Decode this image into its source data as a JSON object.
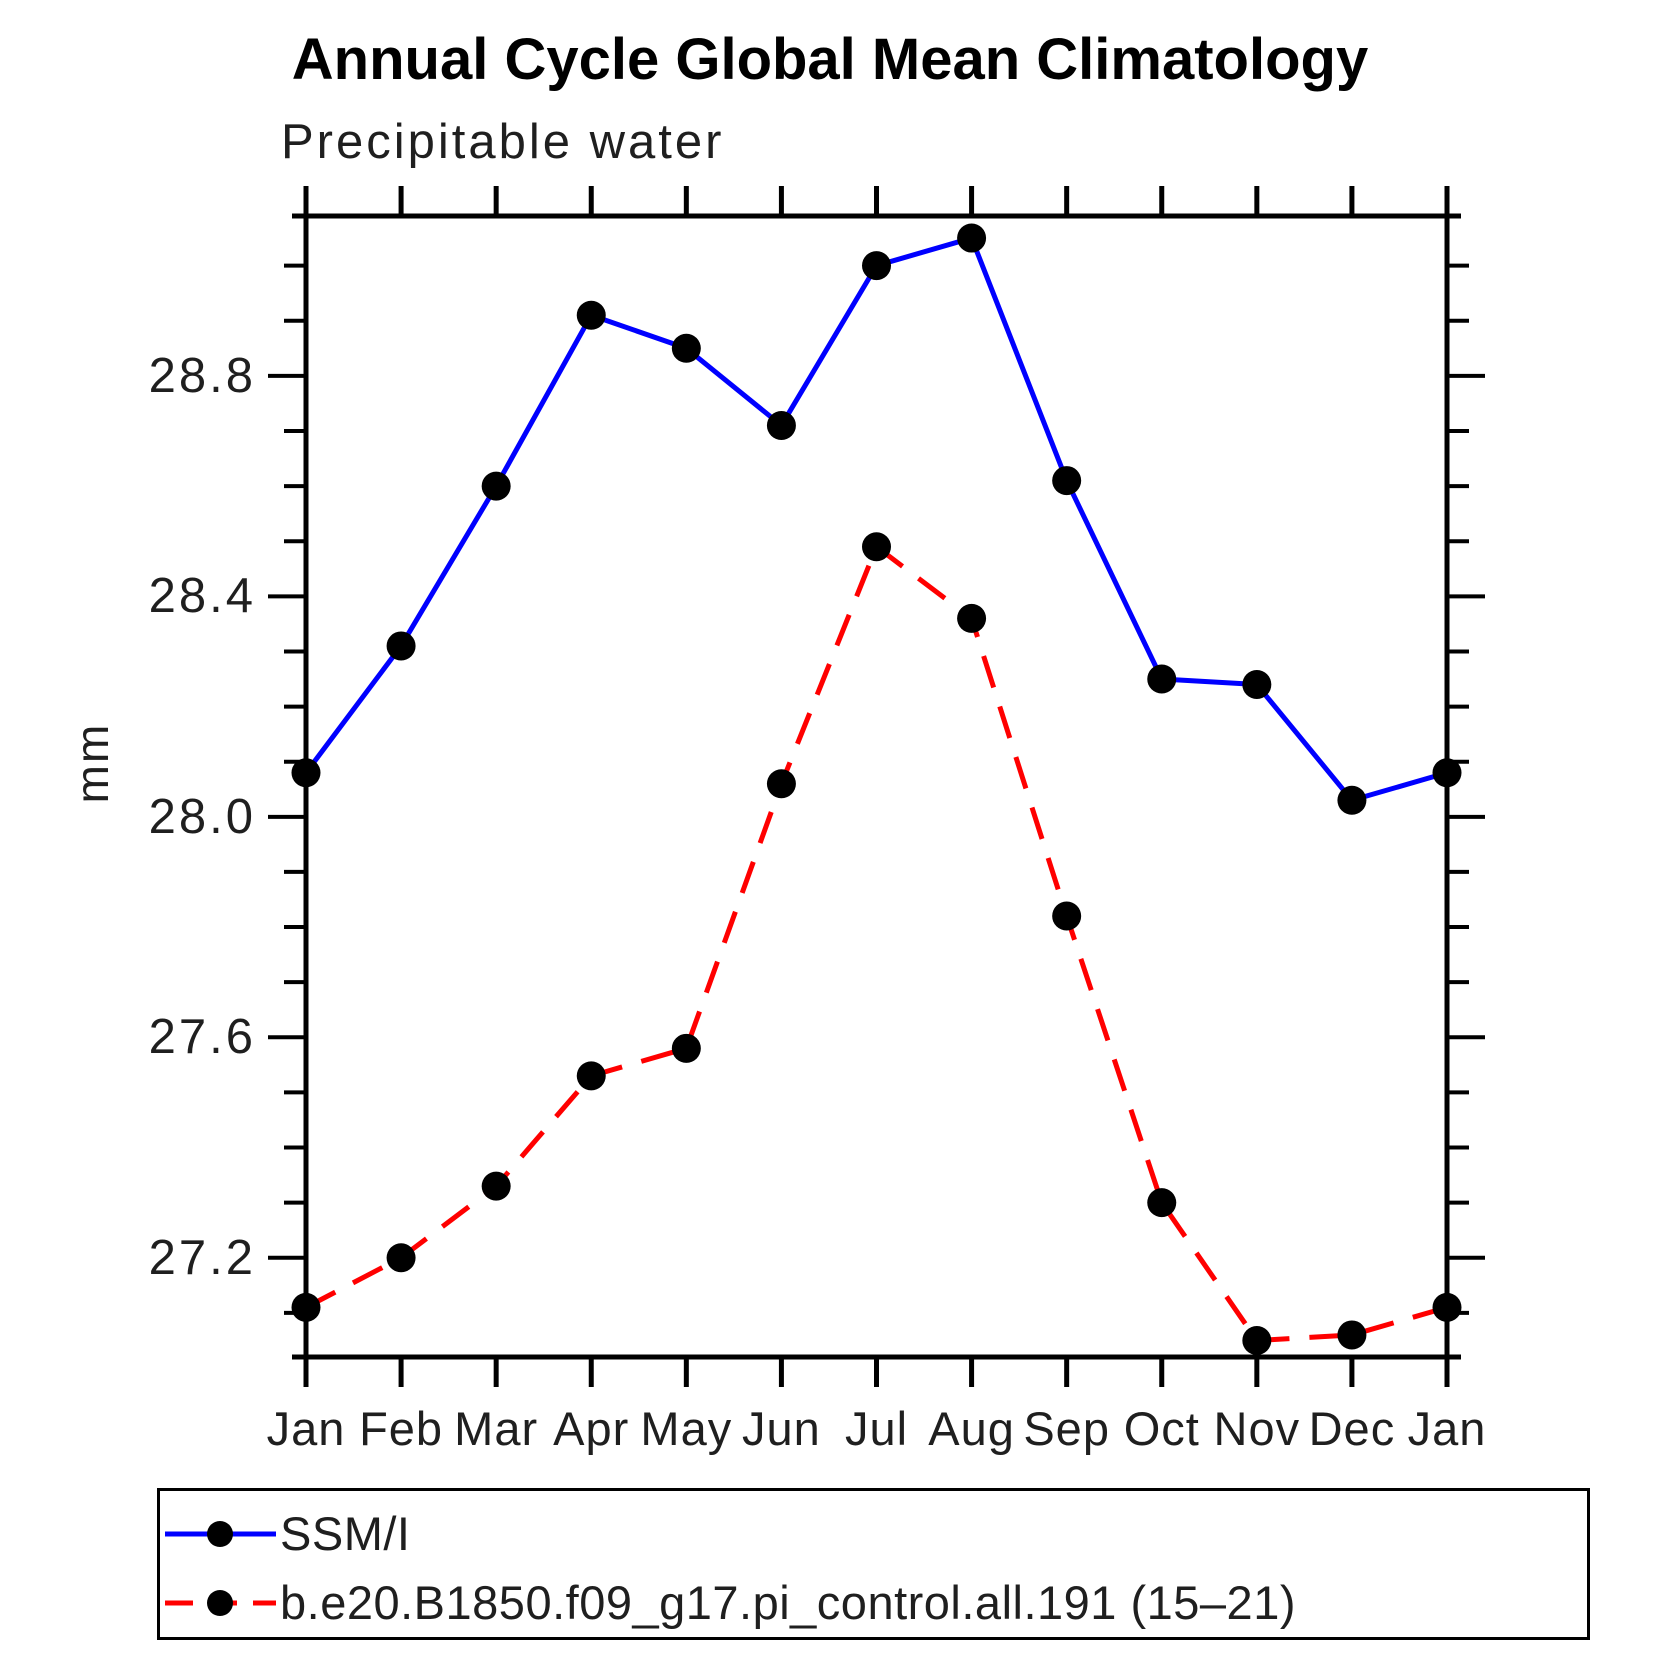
{
  "page": {
    "background": "#ffffff"
  },
  "header": {
    "title": "Annual Cycle Global Mean Climatology",
    "subtitle": "Precipitable water"
  },
  "chart_data": {
    "type": "line",
    "title": "Annual Cycle Global Mean Climatology",
    "subtitle": "Precipitable water",
    "xlabel": "",
    "ylabel": "mm",
    "x_ticklabels": [
      "Jan",
      "Feb",
      "Mar",
      "Apr",
      "May",
      "Jun",
      "Jul",
      "Aug",
      "Sep",
      "Oct",
      "Nov",
      "Dec",
      "Jan"
    ],
    "y_major_ticks": [
      27.2,
      27.6,
      28.0,
      28.4,
      28.8
    ],
    "y_tick_labels": [
      "27.2",
      "27.6",
      "28.0",
      "28.4",
      "28.8"
    ],
    "y_minor_step": 0.1,
    "y_minor_range": [
      27.1,
      29.0
    ],
    "ylim": [
      27.02,
      29.09
    ],
    "grid": false,
    "legend_position": "bottom-left-box",
    "axis_color": "#000000",
    "marker_color": "#000000",
    "series": [
      {
        "name": "SSM/I",
        "color": "#0000ff",
        "style": "solid",
        "marker": "circle",
        "values": [
          28.08,
          28.31,
          28.6,
          28.91,
          28.85,
          28.71,
          29.0,
          29.05,
          28.61,
          28.25,
          28.24,
          28.03,
          28.08
        ]
      },
      {
        "name": "b.e20.B1850.f09_g17.pi_control.all.191 (15–21)",
        "color": "#ff0000",
        "style": "dashed",
        "marker": "circle",
        "values": [
          27.11,
          27.2,
          27.33,
          27.53,
          27.58,
          28.06,
          28.49,
          28.36,
          27.82,
          27.3,
          27.05,
          27.06,
          27.11
        ]
      }
    ]
  }
}
